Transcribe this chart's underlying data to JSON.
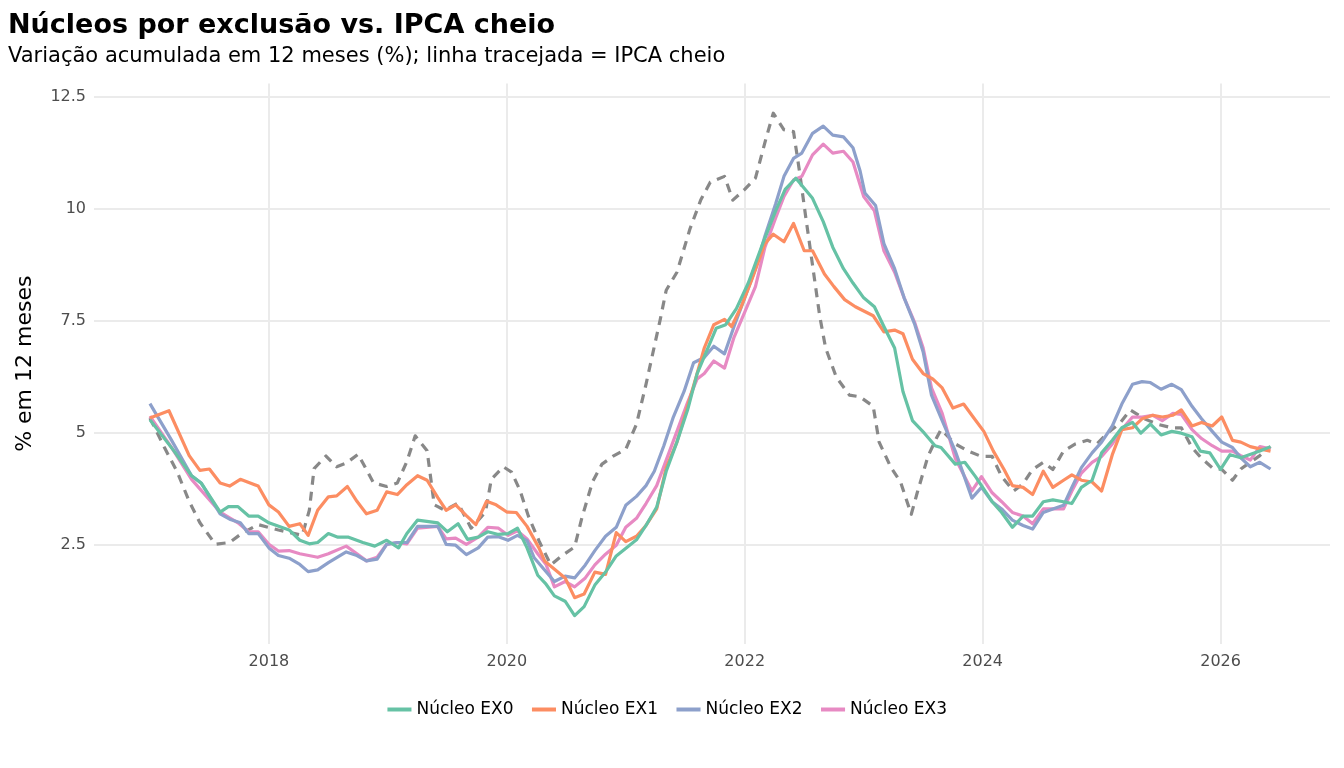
{
  "chart_data": {
    "type": "line",
    "title": "Núcleos por exclusão vs. IPCA cheio",
    "subtitle": "Variação acumulada em 12 meses (%); linha tracejada = IPCA cheio",
    "ylabel": "% em 12 meses",
    "xlim": [
      2016.53,
      2026.92
    ],
    "xticks": [
      2018,
      2020,
      2022,
      2024,
      2026
    ],
    "ylim": [
      0.3,
      12.8
    ],
    "yticks": [
      2.5,
      5,
      7.5,
      10,
      12.5
    ],
    "grid": true,
    "legend": "bottom",
    "marker": "none",
    "series": [
      {
        "name": "Núcleo EX0",
        "color": "#66c2a5",
        "x": [
          2017.0,
          2017.2,
          2017.35,
          2017.43,
          2017.59,
          2017.66,
          2017.74,
          2017.83,
          2017.91,
          2018.0,
          2018.17,
          2018.26,
          2018.34,
          2018.41,
          2018.5,
          2018.58,
          2018.67,
          2018.79,
          2018.89,
          2018.99,
          2019.09,
          2019.16,
          2019.25,
          2019.42,
          2019.5,
          2019.59,
          2019.67,
          2019.76,
          2019.84,
          2019.93,
          2020.01,
          2020.09,
          2020.17,
          2020.26,
          2020.33,
          2020.4,
          2020.49,
          2020.57,
          2020.65,
          2020.74,
          2020.83,
          2020.92,
          2021.09,
          2021.17,
          2021.26,
          2021.34,
          2021.43,
          2021.52,
          2021.6,
          2021.69,
          2021.76,
          2021.84,
          2021.93,
          2022.03,
          2022.14,
          2022.26,
          2022.34,
          2022.43,
          2022.57,
          2022.66,
          2022.74,
          2022.83,
          2022.91,
          2023.0,
          2023.09,
          2023.17,
          2023.26,
          2023.33,
          2023.41,
          2023.51,
          2023.6,
          2023.65,
          2023.77,
          2023.85,
          2023.94,
          2024.08,
          2024.16,
          2024.25,
          2024.34,
          2024.42,
          2024.51,
          2024.59,
          2024.68,
          2024.75,
          2024.83,
          2024.92,
          2025.0,
          2025.09,
          2025.17,
          2025.26,
          2025.33,
          2025.41,
          2025.5,
          2025.59,
          2025.67,
          2025.76,
          2025.83,
          2025.91,
          2026.0,
          2026.08,
          2026.17,
          2026.33,
          2026.42
        ],
        "values": [
          5.3,
          4.61,
          4.05,
          3.89,
          3.24,
          3.36,
          3.36,
          3.15,
          3.15,
          3.0,
          2.84,
          2.61,
          2.53,
          2.56,
          2.76,
          2.68,
          2.68,
          2.56,
          2.48,
          2.61,
          2.44,
          2.76,
          3.06,
          3.0,
          2.8,
          2.98,
          2.63,
          2.68,
          2.8,
          2.74,
          2.76,
          2.88,
          2.44,
          1.83,
          1.63,
          1.37,
          1.25,
          0.93,
          1.13,
          1.61,
          1.9,
          2.26,
          2.62,
          2.94,
          3.35,
          4.15,
          4.8,
          5.52,
          6.33,
          6.9,
          7.34,
          7.42,
          7.78,
          8.35,
          9.15,
          9.96,
          10.44,
          10.69,
          10.24,
          9.72,
          9.15,
          8.67,
          8.35,
          8.02,
          7.82,
          7.38,
          6.9,
          5.93,
          5.28,
          5.0,
          4.72,
          4.68,
          4.31,
          4.35,
          4.03,
          3.47,
          3.23,
          2.9,
          3.15,
          3.15,
          3.47,
          3.51,
          3.47,
          3.43,
          3.79,
          3.95,
          4.56,
          4.84,
          5.12,
          5.24,
          5.0,
          5.2,
          4.96,
          5.04,
          5.0,
          4.92,
          4.6,
          4.56,
          4.19,
          4.52,
          4.45,
          4.6,
          4.7
        ]
      },
      {
        "name": "Núcleo EX1",
        "color": "#fc8d62",
        "x": [
          2017.0,
          2017.16,
          2017.33,
          2017.42,
          2017.5,
          2017.59,
          2017.67,
          2017.76,
          2017.91,
          2018.0,
          2018.08,
          2018.17,
          2018.26,
          2018.33,
          2018.41,
          2018.5,
          2018.57,
          2018.66,
          2018.74,
          2018.82,
          2018.91,
          2018.99,
          2019.08,
          2019.16,
          2019.25,
          2019.33,
          2019.42,
          2019.49,
          2019.57,
          2019.66,
          2019.74,
          2019.83,
          2019.91,
          2020.0,
          2020.08,
          2020.17,
          2020.27,
          2020.32,
          2020.49,
          2020.57,
          2020.65,
          2020.74,
          2020.83,
          2020.92,
          2021.0,
          2021.09,
          2021.17,
          2021.26,
          2021.34,
          2021.43,
          2021.52,
          2021.6,
          2021.66,
          2021.74,
          2021.83,
          2021.89,
          2021.97,
          2022.06,
          2022.17,
          2022.24,
          2022.33,
          2022.41,
          2022.5,
          2022.57,
          2022.67,
          2022.75,
          2022.84,
          2022.93,
          2023.08,
          2023.17,
          2023.26,
          2023.33,
          2023.41,
          2023.5,
          2023.58,
          2023.66,
          2023.75,
          2023.84,
          2023.92,
          2024.01,
          2024.09,
          2024.18,
          2024.25,
          2024.34,
          2024.42,
          2024.51,
          2024.59,
          2024.68,
          2024.75,
          2024.83,
          2024.92,
          2025.0,
          2025.09,
          2025.17,
          2025.26,
          2025.34,
          2025.43,
          2025.51,
          2025.6,
          2025.67,
          2025.76,
          2025.84,
          2025.93,
          2026.01,
          2026.1,
          2026.17,
          2026.25,
          2026.33,
          2026.42
        ],
        "values": [
          5.34,
          5.5,
          4.5,
          4.17,
          4.2,
          3.89,
          3.82,
          3.97,
          3.82,
          3.4,
          3.24,
          2.92,
          2.98,
          2.72,
          3.28,
          3.58,
          3.6,
          3.81,
          3.48,
          3.2,
          3.28,
          3.69,
          3.63,
          3.85,
          4.05,
          3.95,
          3.56,
          3.28,
          3.4,
          3.16,
          2.96,
          3.48,
          3.4,
          3.24,
          3.23,
          2.92,
          2.44,
          2.14,
          1.77,
          1.33,
          1.41,
          1.9,
          1.85,
          2.78,
          2.58,
          2.7,
          2.94,
          3.31,
          4.23,
          4.8,
          5.6,
          6.33,
          6.9,
          7.42,
          7.54,
          7.38,
          7.82,
          8.43,
          9.23,
          9.44,
          9.27,
          9.68,
          9.07,
          9.07,
          8.55,
          8.27,
          7.98,
          7.82,
          7.62,
          7.26,
          7.3,
          7.22,
          6.65,
          6.33,
          6.21,
          6.01,
          5.56,
          5.65,
          5.36,
          5.04,
          4.6,
          4.19,
          3.83,
          3.79,
          3.63,
          4.15,
          3.79,
          3.95,
          4.07,
          3.95,
          3.91,
          3.71,
          4.52,
          5.08,
          5.12,
          5.32,
          5.4,
          5.36,
          5.4,
          5.52,
          5.16,
          5.24,
          5.16,
          5.36,
          4.84,
          4.8,
          4.7,
          4.65,
          4.6
        ]
      },
      {
        "name": "Núcleo EX2",
        "color": "#8da0cb",
        "x": [
          2017.0,
          2017.18,
          2017.35,
          2017.43,
          2017.59,
          2017.67,
          2017.76,
          2017.83,
          2017.91,
          2018.0,
          2018.08,
          2018.17,
          2018.26,
          2018.33,
          2018.41,
          2018.5,
          2018.65,
          2018.74,
          2018.82,
          2018.91,
          2018.99,
          2019.08,
          2019.16,
          2019.25,
          2019.42,
          2019.49,
          2019.57,
          2019.66,
          2019.76,
          2019.84,
          2019.93,
          2020.01,
          2020.09,
          2020.17,
          2020.23,
          2020.4,
          2020.49,
          2020.57,
          2020.66,
          2020.74,
          2020.83,
          2020.92,
          2021.0,
          2021.09,
          2021.17,
          2021.24,
          2021.32,
          2021.4,
          2021.49,
          2021.57,
          2021.66,
          2021.74,
          2021.83,
          2021.91,
          2022.0,
          2022.09,
          2022.17,
          2022.26,
          2022.33,
          2022.41,
          2022.48,
          2022.57,
          2022.66,
          2022.74,
          2022.83,
          2022.91,
          2022.97,
          2023.01,
          2023.1,
          2023.17,
          2023.26,
          2023.34,
          2023.43,
          2023.5,
          2023.57,
          2023.66,
          2023.77,
          2023.91,
          2023.99,
          2024.08,
          2024.16,
          2024.25,
          2024.34,
          2024.42,
          2024.51,
          2024.59,
          2024.68,
          2024.75,
          2024.83,
          2024.92,
          2025.0,
          2025.09,
          2025.17,
          2025.26,
          2025.34,
          2025.41,
          2025.5,
          2025.59,
          2025.67,
          2025.76,
          2025.84,
          2025.93,
          2026.01,
          2026.1,
          2026.17,
          2026.25,
          2026.33,
          2026.42
        ],
        "values": [
          5.66,
          4.85,
          4.05,
          3.89,
          3.2,
          3.08,
          3.0,
          2.76,
          2.76,
          2.44,
          2.27,
          2.21,
          2.07,
          1.91,
          1.95,
          2.11,
          2.35,
          2.27,
          2.15,
          2.19,
          2.52,
          2.56,
          2.56,
          2.92,
          2.92,
          2.52,
          2.5,
          2.29,
          2.44,
          2.68,
          2.69,
          2.61,
          2.72,
          2.6,
          2.22,
          1.69,
          1.81,
          1.77,
          2.06,
          2.38,
          2.7,
          2.9,
          3.39,
          3.59,
          3.83,
          4.15,
          4.72,
          5.36,
          5.93,
          6.57,
          6.69,
          6.94,
          6.77,
          7.38,
          8.02,
          8.67,
          9.4,
          10.12,
          10.73,
          11.13,
          11.25,
          11.69,
          11.85,
          11.65,
          11.61,
          11.37,
          10.85,
          10.36,
          10.08,
          9.23,
          8.67,
          8.02,
          7.42,
          6.81,
          5.85,
          5.28,
          4.6,
          3.55,
          3.79,
          3.47,
          3.31,
          3.06,
          2.94,
          2.86,
          3.23,
          3.31,
          3.39,
          3.79,
          4.23,
          4.56,
          4.8,
          5.16,
          5.65,
          6.09,
          6.15,
          6.13,
          5.98,
          6.09,
          5.97,
          5.6,
          5.32,
          5.04,
          4.8,
          4.68,
          4.45,
          4.25,
          4.35,
          4.2
        ]
      },
      {
        "name": "Núcleo EX3",
        "color": "#e78ac3",
        "x": [
          2017.0,
          2017.18,
          2017.35,
          2017.59,
          2017.74,
          2017.83,
          2017.91,
          2018.0,
          2018.08,
          2018.17,
          2018.26,
          2018.41,
          2018.5,
          2018.65,
          2018.74,
          2018.82,
          2018.91,
          2018.99,
          2019.08,
          2019.16,
          2019.25,
          2019.42,
          2019.49,
          2019.57,
          2019.66,
          2019.76,
          2019.84,
          2019.93,
          2020.01,
          2020.09,
          2020.17,
          2020.26,
          2020.33,
          2020.4,
          2020.49,
          2020.57,
          2020.66,
          2020.74,
          2020.83,
          2020.92,
          2021.0,
          2021.09,
          2021.17,
          2021.26,
          2021.34,
          2021.43,
          2021.52,
          2021.6,
          2021.66,
          2021.74,
          2021.83,
          2021.91,
          2022.0,
          2022.09,
          2022.17,
          2022.26,
          2022.33,
          2022.41,
          2022.48,
          2022.57,
          2022.66,
          2022.74,
          2022.83,
          2022.91,
          2023.0,
          2023.09,
          2023.17,
          2023.26,
          2023.34,
          2023.43,
          2023.5,
          2023.57,
          2023.66,
          2023.77,
          2023.91,
          2023.99,
          2024.08,
          2024.16,
          2024.25,
          2024.34,
          2024.42,
          2024.51,
          2024.59,
          2024.68,
          2024.75,
          2024.83,
          2024.92,
          2025.0,
          2025.09,
          2025.17,
          2025.26,
          2025.34,
          2025.43,
          2025.51,
          2025.6,
          2025.67,
          2025.76,
          2025.84,
          2025.93,
          2026.01,
          2026.1,
          2026.17,
          2026.25,
          2026.33,
          2026.42
        ],
        "values": [
          5.38,
          4.69,
          3.97,
          3.24,
          3.0,
          2.8,
          2.8,
          2.52,
          2.37,
          2.38,
          2.31,
          2.23,
          2.31,
          2.48,
          2.31,
          2.15,
          2.23,
          2.52,
          2.56,
          2.53,
          2.88,
          2.92,
          2.64,
          2.66,
          2.52,
          2.68,
          2.9,
          2.88,
          2.72,
          2.82,
          2.64,
          2.31,
          2.07,
          1.57,
          1.69,
          1.57,
          1.77,
          2.06,
          2.3,
          2.5,
          2.9,
          3.1,
          3.43,
          3.83,
          4.4,
          5.04,
          5.69,
          6.21,
          6.33,
          6.61,
          6.45,
          7.14,
          7.7,
          8.27,
          9.15,
          9.8,
          10.28,
          10.65,
          10.73,
          11.21,
          11.45,
          11.25,
          11.29,
          11.05,
          10.28,
          9.96,
          9.07,
          8.59,
          8.02,
          7.46,
          6.9,
          6.01,
          5.44,
          4.44,
          3.71,
          4.03,
          3.67,
          3.47,
          3.23,
          3.15,
          2.98,
          3.31,
          3.31,
          3.31,
          3.71,
          4.11,
          4.35,
          4.48,
          4.76,
          5.08,
          5.36,
          5.36,
          5.4,
          5.28,
          5.44,
          5.42,
          5.08,
          4.88,
          4.72,
          4.6,
          4.6,
          4.5,
          4.4,
          4.7,
          4.65
        ]
      },
      {
        "color": "#888888",
        "line_style": "dashed",
        "x": [
          2017.0,
          2017.12,
          2017.23,
          2017.33,
          2017.42,
          2017.55,
          2017.67,
          2017.77,
          2017.91,
          2018.08,
          2018.28,
          2018.34,
          2018.38,
          2018.48,
          2018.57,
          2018.65,
          2018.75,
          2018.88,
          2018.99,
          2019.08,
          2019.16,
          2019.23,
          2019.33,
          2019.39,
          2019.48,
          2019.59,
          2019.7,
          2019.82,
          2019.87,
          2019.97,
          2020.04,
          2020.11,
          2020.18,
          2020.27,
          2020.37,
          2020.46,
          2020.57,
          2020.63,
          2020.72,
          2020.8,
          2020.89,
          2021.0,
          2021.09,
          2021.17,
          2021.29,
          2021.34,
          2021.43,
          2021.54,
          2021.63,
          2021.71,
          2021.83,
          2021.9,
          2022.0,
          2022.09,
          2022.17,
          2022.24,
          2022.33,
          2022.41,
          2022.46,
          2022.51,
          2022.57,
          2022.63,
          2022.68,
          2022.77,
          2022.88,
          2022.97,
          2023.08,
          2023.13,
          2023.23,
          2023.31,
          2023.4,
          2023.45,
          2023.54,
          2023.61,
          2023.65,
          2023.77,
          2023.88,
          2023.99,
          2024.08,
          2024.16,
          2024.26,
          2024.34,
          2024.42,
          2024.51,
          2024.59,
          2024.68,
          2024.78,
          2024.88,
          2024.96,
          2025.05,
          2025.16,
          2025.24,
          2025.36,
          2025.47,
          2025.59,
          2025.67,
          2025.76,
          2025.84,
          2025.93,
          2026.01,
          2026.1,
          2026.17,
          2026.33,
          2026.42
        ],
        "values": [
          5.34,
          4.69,
          4.13,
          3.48,
          3.0,
          2.52,
          2.56,
          2.76,
          2.96,
          2.84,
          2.72,
          3.28,
          4.21,
          4.49,
          4.25,
          4.33,
          4.53,
          3.89,
          3.81,
          3.89,
          4.37,
          4.94,
          4.61,
          3.4,
          3.28,
          3.44,
          2.88,
          3.24,
          3.97,
          4.25,
          4.13,
          3.73,
          3.16,
          2.6,
          2.06,
          2.26,
          2.46,
          3.1,
          3.91,
          4.31,
          4.48,
          4.64,
          5.2,
          6.09,
          7.54,
          8.19,
          8.59,
          9.56,
          10.2,
          10.6,
          10.73,
          10.2,
          10.44,
          10.69,
          11.49,
          12.14,
          11.77,
          11.73,
          10.85,
          9.88,
          8.75,
          7.62,
          6.9,
          6.25,
          5.85,
          5.81,
          5.6,
          4.8,
          4.23,
          3.91,
          3.19,
          3.67,
          4.48,
          4.88,
          5.08,
          4.76,
          4.6,
          4.48,
          4.48,
          4.03,
          3.71,
          3.87,
          4.19,
          4.35,
          4.19,
          4.6,
          4.76,
          4.84,
          4.76,
          5.0,
          5.24,
          5.52,
          5.32,
          5.2,
          5.12,
          5.12,
          4.68,
          4.44,
          4.23,
          4.19,
          3.95,
          4.2,
          4.5,
          4.7
        ]
      }
    ]
  }
}
